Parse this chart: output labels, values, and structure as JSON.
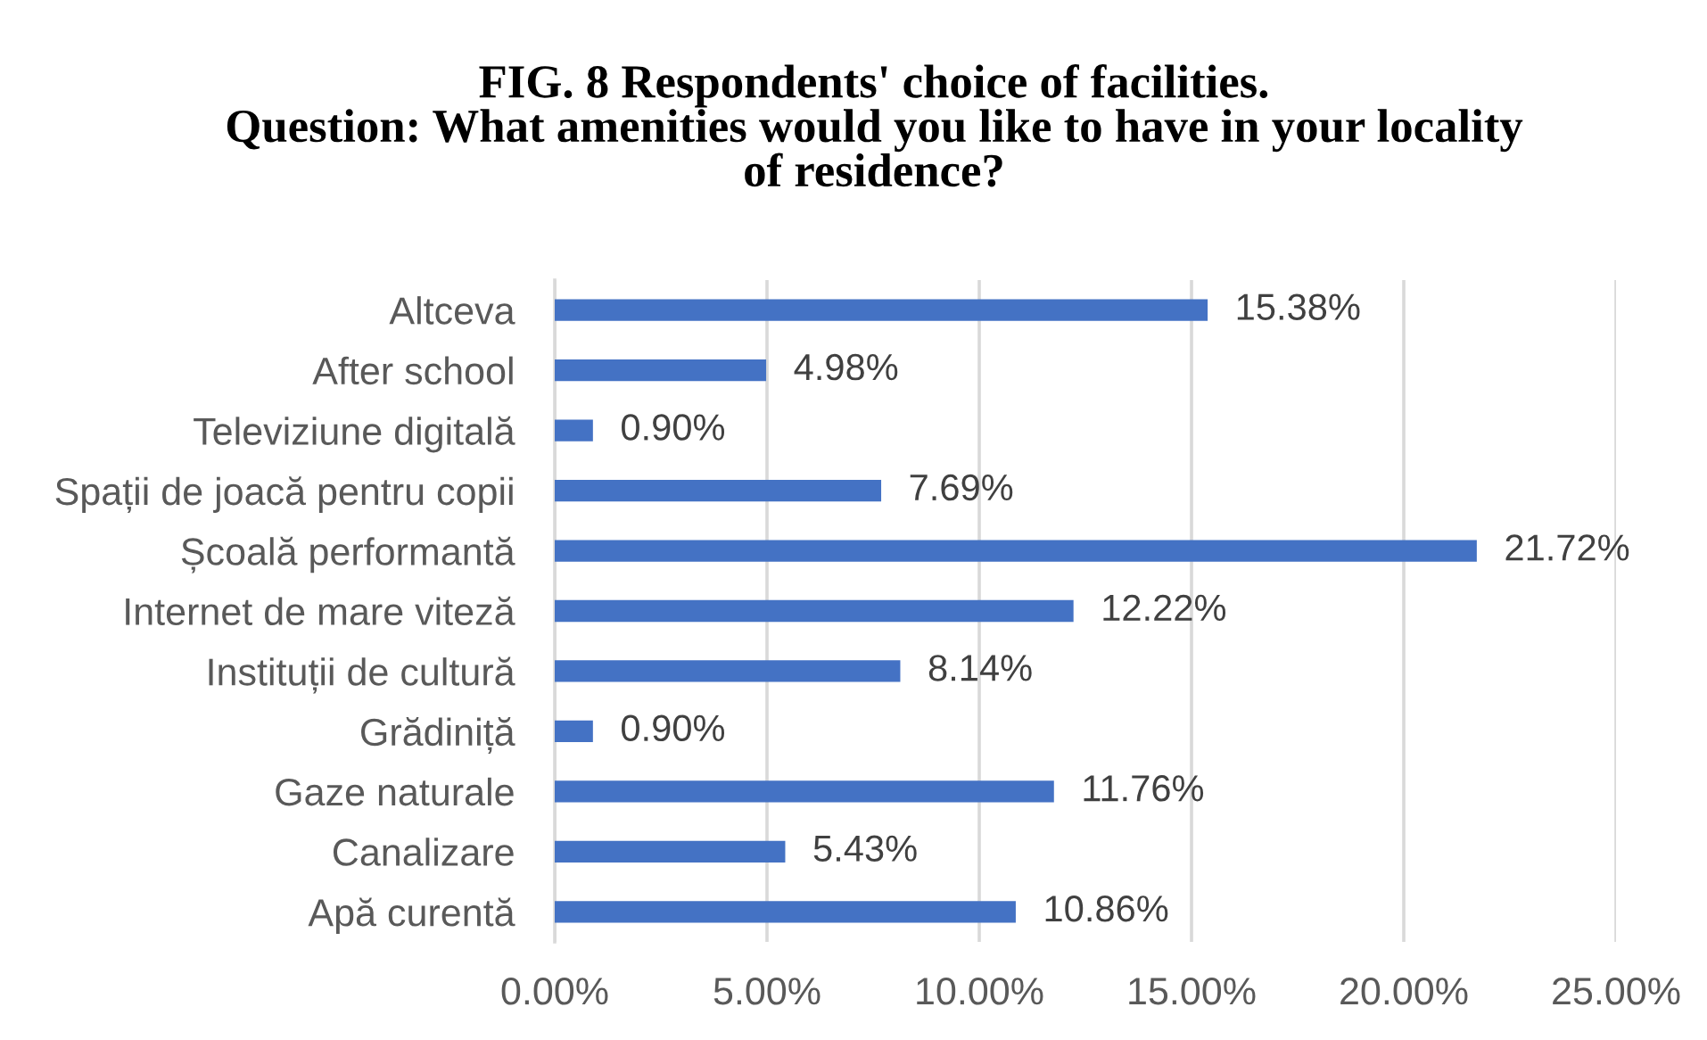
{
  "chart_data": {
    "type": "bar",
    "orientation": "horizontal",
    "title": "FIG. 8 Respondents' choice of facilities.\nQuestion: What amenities would you like to have in your locality\nof residence?",
    "categories": [
      "Altceva",
      "After school",
      "Televiziune digitală",
      "Spații de joacă pentru copii",
      "Școală performantă",
      "Internet de mare viteză",
      "Instituții de cultură",
      "Grădiniță",
      "Gaze naturale",
      "Canalizare",
      "Apă curentă"
    ],
    "values": [
      15.38,
      4.98,
      0.9,
      7.69,
      21.72,
      12.22,
      8.14,
      0.9,
      11.76,
      5.43,
      10.86
    ],
    "value_labels": [
      "15.38%",
      "4.98%",
      "0.90%",
      "7.69%",
      "21.72%",
      "12.22%",
      "8.14%",
      "0.90%",
      "11.76%",
      "5.43%",
      "10.86%"
    ],
    "color": "#4472c4",
    "xlim": [
      0,
      25
    ],
    "xticks": [
      {
        "value": 0,
        "label": "0.00%"
      },
      {
        "value": 5,
        "label": "5.00%"
      },
      {
        "value": 10,
        "label": "10.00%"
      },
      {
        "value": 15,
        "label": "15.00%"
      },
      {
        "value": 20,
        "label": "20.00%"
      },
      {
        "value": 25,
        "label": "25.00%"
      }
    ],
    "grid": "x",
    "legend": false
  }
}
